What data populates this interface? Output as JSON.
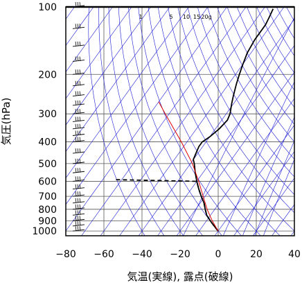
{
  "chart_data": {
    "type": "line",
    "subtype": "skew-t log-p aerological diagram",
    "xlabel": "気温(実線), 露点(破線)",
    "ylabel": "気圧(hPa)",
    "x_ticks": [
      -80,
      -60,
      -40,
      -20,
      0,
      20,
      40
    ],
    "y_ticks": [
      100,
      200,
      300,
      400,
      500,
      600,
      700,
      800,
      900,
      1000
    ],
    "xlim": [
      -80,
      40
    ],
    "ylim": [
      1050,
      100
    ],
    "y_scale": "log",
    "mixing_ratio_labels": [
      "1",
      "5",
      "10",
      "15",
      "20g"
    ],
    "series": [
      {
        "style": "solid",
        "color": "#000000",
        "points": [
          {
            "p": 1000,
            "t": 0
          },
          {
            "p": 950,
            "t": -4
          },
          {
            "p": 900,
            "t": -8
          },
          {
            "p": 850,
            "t": -12
          },
          {
            "p": 800,
            "t": -15
          },
          {
            "p": 750,
            "t": -18
          },
          {
            "p": 700,
            "t": -22
          },
          {
            "p": 650,
            "t": -26
          },
          {
            "p": 600,
            "t": -30
          },
          {
            "p": 550,
            "t": -34
          },
          {
            "p": 500,
            "t": -38
          },
          {
            "p": 480,
            "t": -40
          },
          {
            "p": 450,
            "t": -41
          },
          {
            "p": 420,
            "t": -42
          },
          {
            "p": 400,
            "t": -42
          },
          {
            "p": 380,
            "t": -40
          },
          {
            "p": 350,
            "t": -38
          },
          {
            "p": 320,
            "t": -37
          },
          {
            "p": 300,
            "t": -38
          },
          {
            "p": 270,
            "t": -41
          },
          {
            "p": 250,
            "t": -43
          },
          {
            "p": 220,
            "t": -46
          },
          {
            "p": 200,
            "t": -48
          },
          {
            "p": 180,
            "t": -50
          },
          {
            "p": 160,
            "t": -52
          },
          {
            "p": 140,
            "t": -53
          },
          {
            "p": 120,
            "t": -53
          },
          {
            "p": 110,
            "t": -54
          },
          {
            "p": 102,
            "t": -55
          }
        ]
      },
      {
        "style": "dashed",
        "color": "#000000",
        "points": [
          {
            "p": 1000,
            "t": 0
          },
          {
            "p": 950,
            "t": -4
          },
          {
            "p": 900,
            "t": -8
          },
          {
            "p": 850,
            "t": -12
          },
          {
            "p": 800,
            "t": -15
          },
          {
            "p": 750,
            "t": -18
          },
          {
            "p": 700,
            "t": -22
          },
          {
            "p": 650,
            "t": -26
          },
          {
            "p": 600,
            "t": -30
          },
          {
            "p": 590,
            "t": -73
          }
        ]
      },
      {
        "style": "solid",
        "color": "#e00000",
        "points": [
          {
            "p": 1000,
            "t": 0
          },
          {
            "p": 900,
            "t": -7
          },
          {
            "p": 800,
            "t": -14
          },
          {
            "p": 700,
            "t": -21
          },
          {
            "p": 600,
            "t": -29
          },
          {
            "p": 500,
            "t": -39
          },
          {
            "p": 400,
            "t": -53
          },
          {
            "p": 300,
            "t": -72
          },
          {
            "p": 265,
            "t": -80
          }
        ]
      }
    ],
    "wind_barbs": [
      100,
      125,
      150,
      175,
      200,
      225,
      250,
      275,
      300,
      325,
      350,
      375,
      400,
      450,
      500,
      550,
      600,
      650,
      700,
      750,
      800,
      850,
      900,
      950,
      1000
    ],
    "grid": true
  }
}
